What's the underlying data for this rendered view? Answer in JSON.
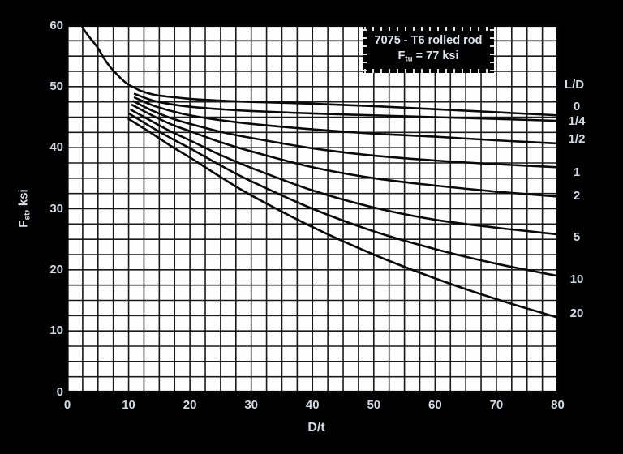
{
  "title_box": {
    "line1": "7075 - T6 rolled rod",
    "line2_prefix": "F",
    "line2_sub": "tu",
    "line2_rest": " = 77 ksi"
  },
  "axes": {
    "x_label": "D/t",
    "y_label_prefix": "F",
    "y_label_sub": "st",
    "y_label_rest": ", ksi",
    "x_ticks": [
      "0",
      "10",
      "20",
      "30",
      "40",
      "50",
      "60",
      "70",
      "80"
    ],
    "y_ticks": [
      "0",
      "10",
      "20",
      "30",
      "40",
      "50",
      "60"
    ]
  },
  "legend": {
    "title": "L/D",
    "entries": [
      {
        "label": "0",
        "at_F": 46.6
      },
      {
        "label": "1/4",
        "at_F": 44.3
      },
      {
        "label": "1/2",
        "at_F": 41.4
      },
      {
        "label": "1",
        "at_F": 35.9
      },
      {
        "label": "2",
        "at_F": 32.1
      },
      {
        "label": "5",
        "at_F": 25.3
      },
      {
        "label": "10",
        "at_F": 18.4
      },
      {
        "label": "20",
        "at_F": 12.8
      }
    ]
  },
  "colors": {
    "background": "#000000",
    "plot_background": "#fefefe",
    "grid": "#1a1a1a",
    "frame": "#050505",
    "curve": "#0a0a0a",
    "text": "#d3dae6"
  },
  "chart_data": {
    "type": "line",
    "title": "7075 - T6 rolled rod, Ftu = 77 ksi",
    "xlabel": "D/t",
    "ylabel": "Fst, ksi",
    "xlim": [
      0,
      80
    ],
    "ylim": [
      0,
      60
    ],
    "grid_step": 2.5,
    "legend_position": "right",
    "series": [
      {
        "name": "L/D = 0",
        "points": [
          [
            2.3,
            60
          ],
          [
            3,
            58.9
          ],
          [
            4,
            57.6
          ],
          [
            5,
            56.3
          ],
          [
            6,
            54.6
          ],
          [
            7,
            53.2
          ],
          [
            8,
            52.1
          ],
          [
            9,
            51.1
          ],
          [
            10,
            50.3
          ],
          [
            11,
            49.8
          ],
          [
            12,
            49.3
          ],
          [
            14,
            48.7
          ],
          [
            16,
            48.4
          ],
          [
            18,
            48.2
          ],
          [
            20,
            48.0
          ],
          [
            25,
            47.7
          ],
          [
            30,
            47.5
          ],
          [
            40,
            47.2
          ],
          [
            50,
            46.8
          ],
          [
            60,
            46.3
          ],
          [
            70,
            45.8
          ],
          [
            80,
            45.3
          ]
        ]
      },
      {
        "name": "L/D = 1/4",
        "points": [
          [
            11,
            48.8
          ],
          [
            14,
            47.7
          ],
          [
            17,
            47.1
          ],
          [
            20,
            46.7
          ],
          [
            25,
            46.3
          ],
          [
            30,
            46.0
          ],
          [
            40,
            45.6
          ],
          [
            50,
            45.3
          ],
          [
            60,
            45.0
          ],
          [
            70,
            44.7
          ],
          [
            80,
            44.4
          ]
        ]
      },
      {
        "name": "L/D = 1/2",
        "points": [
          [
            11,
            48.2
          ],
          [
            14,
            46.9
          ],
          [
            17,
            46.0
          ],
          [
            20,
            45.3
          ],
          [
            25,
            44.5
          ],
          [
            30,
            43.9
          ],
          [
            40,
            43.0
          ],
          [
            50,
            42.3
          ],
          [
            60,
            41.8
          ],
          [
            70,
            41.2
          ],
          [
            80,
            40.7
          ]
        ]
      },
      {
        "name": "L/D = 1",
        "points": [
          [
            10.8,
            47.6
          ],
          [
            14,
            46.0
          ],
          [
            17,
            44.8
          ],
          [
            20,
            43.9
          ],
          [
            25,
            42.6
          ],
          [
            30,
            41.6
          ],
          [
            40,
            39.9
          ],
          [
            50,
            38.7
          ],
          [
            60,
            37.9
          ],
          [
            70,
            37.3
          ],
          [
            80,
            36.8
          ]
        ]
      },
      {
        "name": "L/D = 2",
        "points": [
          [
            10.6,
            47.0
          ],
          [
            14,
            45.2
          ],
          [
            17,
            43.8
          ],
          [
            20,
            42.7
          ],
          [
            25,
            40.9
          ],
          [
            30,
            39.4
          ],
          [
            40,
            36.8
          ],
          [
            50,
            35.0
          ],
          [
            60,
            33.8
          ],
          [
            70,
            32.8
          ],
          [
            80,
            32.0
          ]
        ]
      },
      {
        "name": "L/D = 5",
        "points": [
          [
            10.4,
            46.2
          ],
          [
            14,
            44.2
          ],
          [
            17,
            42.6
          ],
          [
            20,
            41.2
          ],
          [
            25,
            38.8
          ],
          [
            30,
            36.7
          ],
          [
            40,
            33.0
          ],
          [
            50,
            30.2
          ],
          [
            60,
            28.2
          ],
          [
            70,
            26.9
          ],
          [
            80,
            25.8
          ]
        ]
      },
      {
        "name": "L/D = 10",
        "points": [
          [
            10.2,
            45.5
          ],
          [
            14,
            43.2
          ],
          [
            17,
            41.5
          ],
          [
            20,
            39.9
          ],
          [
            25,
            37.1
          ],
          [
            30,
            34.5
          ],
          [
            40,
            30.0
          ],
          [
            50,
            26.3
          ],
          [
            60,
            23.4
          ],
          [
            70,
            21.0
          ],
          [
            80,
            19.0
          ]
        ]
      },
      {
        "name": "L/D = 20",
        "points": [
          [
            10,
            44.7
          ],
          [
            14,
            42.2
          ],
          [
            17,
            40.2
          ],
          [
            20,
            38.4
          ],
          [
            25,
            35.2
          ],
          [
            30,
            32.2
          ],
          [
            40,
            27.0
          ],
          [
            50,
            22.5
          ],
          [
            60,
            18.6
          ],
          [
            70,
            15.2
          ],
          [
            80,
            12.2
          ]
        ]
      }
    ]
  }
}
